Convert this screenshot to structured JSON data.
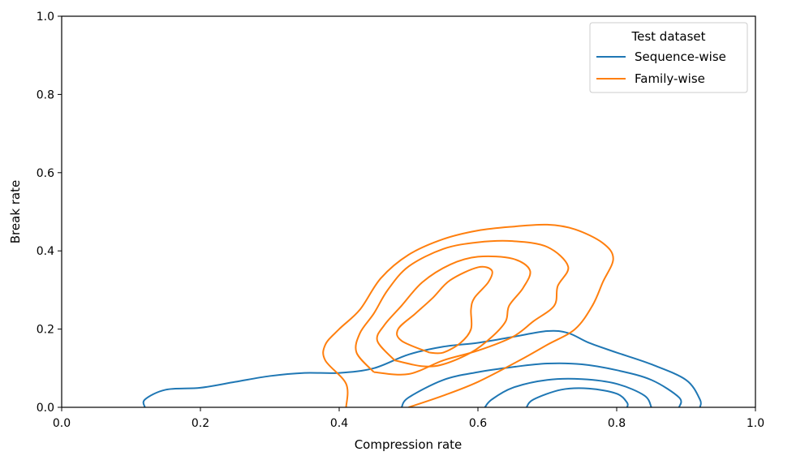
{
  "chart_data": {
    "type": "contour",
    "xlabel": "Compression rate",
    "ylabel": "Break rate",
    "xlim": [
      0.0,
      1.0
    ],
    "ylim": [
      0.0,
      1.0
    ],
    "xticks": [
      "0.0",
      "0.2",
      "0.4",
      "0.6",
      "0.8",
      "1.0"
    ],
    "yticks": [
      "0.0",
      "0.2",
      "0.4",
      "0.6",
      "0.8",
      "1.0"
    ],
    "grid": false,
    "legend": {
      "title": "Test dataset",
      "placement": "top-right",
      "entries": [
        "Sequence-wise",
        "Family-wise"
      ]
    },
    "series": [
      {
        "name": "Sequence-wise",
        "color": "#1f77b4",
        "contours": [
          [
            [
              0.12,
              0.0
            ],
            [
              0.12,
              0.02
            ],
            [
              0.15,
              0.045
            ],
            [
              0.2,
              0.05
            ],
            [
              0.25,
              0.065
            ],
            [
              0.3,
              0.08
            ],
            [
              0.35,
              0.088
            ],
            [
              0.4,
              0.088
            ],
            [
              0.45,
              0.1
            ],
            [
              0.5,
              0.135
            ],
            [
              0.55,
              0.155
            ],
            [
              0.6,
              0.165
            ],
            [
              0.65,
              0.18
            ],
            [
              0.7,
              0.195
            ],
            [
              0.73,
              0.19
            ],
            [
              0.76,
              0.165
            ],
            [
              0.8,
              0.14
            ],
            [
              0.85,
              0.11
            ],
            [
              0.9,
              0.07
            ],
            [
              0.92,
              0.02
            ],
            [
              0.92,
              0.0
            ]
          ],
          [
            [
              0.49,
              0.0
            ],
            [
              0.5,
              0.025
            ],
            [
              0.55,
              0.07
            ],
            [
              0.6,
              0.09
            ],
            [
              0.65,
              0.103
            ],
            [
              0.7,
              0.112
            ],
            [
              0.75,
              0.11
            ],
            [
              0.8,
              0.095
            ],
            [
              0.85,
              0.07
            ],
            [
              0.89,
              0.025
            ],
            [
              0.89,
              0.0
            ]
          ],
          [
            [
              0.61,
              0.0
            ],
            [
              0.62,
              0.02
            ],
            [
              0.65,
              0.05
            ],
            [
              0.7,
              0.07
            ],
            [
              0.75,
              0.072
            ],
            [
              0.8,
              0.06
            ],
            [
              0.84,
              0.03
            ],
            [
              0.85,
              0.0
            ]
          ],
          [
            [
              0.67,
              0.0
            ],
            [
              0.68,
              0.02
            ],
            [
              0.72,
              0.045
            ],
            [
              0.76,
              0.048
            ],
            [
              0.8,
              0.035
            ],
            [
              0.815,
              0.012
            ],
            [
              0.815,
              0.0
            ]
          ]
        ]
      },
      {
        "name": "Family-wise",
        "color": "#ff7f0e",
        "contours": [
          [
            [
              0.41,
              0.0
            ],
            [
              0.41,
              0.06
            ],
            [
              0.38,
              0.12
            ],
            [
              0.38,
              0.16
            ],
            [
              0.4,
              0.2
            ],
            [
              0.43,
              0.25
            ],
            [
              0.46,
              0.33
            ],
            [
              0.5,
              0.39
            ],
            [
              0.55,
              0.43
            ],
            [
              0.6,
              0.452
            ],
            [
              0.65,
              0.462
            ],
            [
              0.7,
              0.467
            ],
            [
              0.74,
              0.455
            ],
            [
              0.78,
              0.42
            ],
            [
              0.795,
              0.38
            ],
            [
              0.78,
              0.32
            ],
            [
              0.765,
              0.26
            ],
            [
              0.74,
              0.2
            ],
            [
              0.7,
              0.16
            ],
            [
              0.66,
              0.12
            ],
            [
              0.6,
              0.065
            ],
            [
              0.55,
              0.03
            ],
            [
              0.5,
              0.0
            ]
          ],
          [
            [
              0.45,
              0.09
            ],
            [
              0.425,
              0.14
            ],
            [
              0.43,
              0.19
            ],
            [
              0.45,
              0.24
            ],
            [
              0.47,
              0.3
            ],
            [
              0.5,
              0.36
            ],
            [
              0.55,
              0.405
            ],
            [
              0.6,
              0.422
            ],
            [
              0.65,
              0.425
            ],
            [
              0.7,
              0.41
            ],
            [
              0.73,
              0.36
            ],
            [
              0.715,
              0.31
            ],
            [
              0.71,
              0.26
            ],
            [
              0.68,
              0.22
            ],
            [
              0.65,
              0.18
            ],
            [
              0.6,
              0.145
            ],
            [
              0.55,
              0.12
            ],
            [
              0.5,
              0.085
            ],
            [
              0.45,
              0.09
            ]
          ],
          [
            [
              0.48,
              0.12
            ],
            [
              0.455,
              0.17
            ],
            [
              0.465,
              0.21
            ],
            [
              0.49,
              0.26
            ],
            [
              0.52,
              0.32
            ],
            [
              0.56,
              0.365
            ],
            [
              0.6,
              0.385
            ],
            [
              0.65,
              0.38
            ],
            [
              0.675,
              0.35
            ],
            [
              0.665,
              0.305
            ],
            [
              0.645,
              0.26
            ],
            [
              0.64,
              0.22
            ],
            [
              0.62,
              0.18
            ],
            [
              0.59,
              0.14
            ],
            [
              0.55,
              0.11
            ],
            [
              0.52,
              0.105
            ],
            [
              0.48,
              0.12
            ]
          ],
          [
            [
              0.53,
              0.14
            ],
            [
              0.49,
              0.17
            ],
            [
              0.485,
              0.2
            ],
            [
              0.51,
              0.24
            ],
            [
              0.535,
              0.28
            ],
            [
              0.56,
              0.325
            ],
            [
              0.6,
              0.358
            ],
            [
              0.62,
              0.35
            ],
            [
              0.615,
              0.32
            ],
            [
              0.595,
              0.28
            ],
            [
              0.59,
              0.25
            ],
            [
              0.59,
              0.2
            ],
            [
              0.575,
              0.165
            ],
            [
              0.55,
              0.14
            ],
            [
              0.53,
              0.14
            ]
          ]
        ]
      }
    ]
  }
}
